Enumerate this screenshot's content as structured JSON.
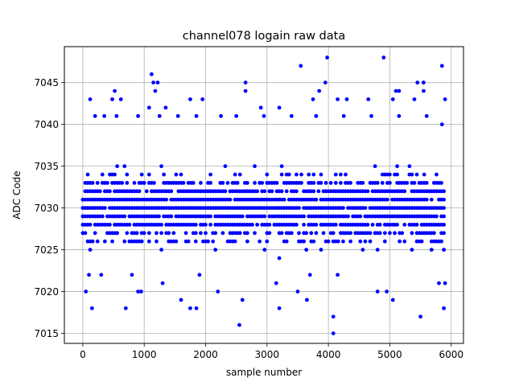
{
  "chart_data": {
    "type": "scatter",
    "title": "channel078 logain raw data",
    "xlabel": "sample number",
    "ylabel": "ADC Code",
    "xlim": [
      -300,
      6200
    ],
    "ylim": [
      7013.8,
      7049.3
    ],
    "xticks": [
      0,
      1000,
      2000,
      3000,
      4000,
      5000,
      6000
    ],
    "yticks": [
      7015,
      7020,
      7025,
      7030,
      7035,
      7040,
      7045
    ],
    "grid": true,
    "marker_color": "#0000ff",
    "series": [
      {
        "x_range": [
          0,
          5900
        ],
        "x_step": 40,
        "typical_range": [
          7022,
          7038
        ],
        "center": 7030,
        "points": [
          [
            2550,
            7016
          ],
          [
            4080,
            7015
          ],
          [
            4080,
            7017
          ],
          [
            5500,
            7017
          ],
          [
            150,
            7018
          ],
          [
            700,
            7018
          ],
          [
            1750,
            7018
          ],
          [
            1850,
            7018
          ],
          [
            3200,
            7018
          ],
          [
            5880,
            7018
          ],
          [
            2600,
            7019
          ],
          [
            3650,
            7019
          ],
          [
            5050,
            7019
          ],
          [
            1600,
            7019
          ],
          [
            50,
            7020
          ],
          [
            900,
            7020
          ],
          [
            950,
            7020
          ],
          [
            2200,
            7020
          ],
          [
            3500,
            7020
          ],
          [
            4800,
            7020
          ],
          [
            4950,
            7020
          ],
          [
            100,
            7022
          ],
          [
            300,
            7022
          ],
          [
            800,
            7022
          ],
          [
            1300,
            7021
          ],
          [
            1900,
            7022
          ],
          [
            3150,
            7021
          ],
          [
            3700,
            7022
          ],
          [
            4150,
            7022
          ],
          [
            5800,
            7021
          ],
          [
            5900,
            7021
          ],
          [
            200,
            7041
          ],
          [
            350,
            7041
          ],
          [
            550,
            7041
          ],
          [
            900,
            7041
          ],
          [
            1250,
            7041
          ],
          [
            1550,
            7041
          ],
          [
            1850,
            7041
          ],
          [
            2250,
            7041
          ],
          [
            2500,
            7041
          ],
          [
            2950,
            7041
          ],
          [
            3400,
            7041
          ],
          [
            3800,
            7041
          ],
          [
            4250,
            7041
          ],
          [
            4700,
            7041
          ],
          [
            5150,
            7041
          ],
          [
            5600,
            7041
          ],
          [
            5850,
            7040
          ],
          [
            120,
            7043
          ],
          [
            480,
            7043
          ],
          [
            620,
            7043
          ],
          [
            1080,
            7042
          ],
          [
            1180,
            7044
          ],
          [
            1350,
            7042
          ],
          [
            1750,
            7043
          ],
          [
            1950,
            7043
          ],
          [
            2650,
            7044
          ],
          [
            2900,
            7042
          ],
          [
            3200,
            7042
          ],
          [
            3750,
            7043
          ],
          [
            4150,
            7043
          ],
          [
            4300,
            7043
          ],
          [
            4650,
            7043
          ],
          [
            5050,
            7043
          ],
          [
            5100,
            7044
          ],
          [
            5400,
            7043
          ],
          [
            5550,
            7044
          ],
          [
            5900,
            7043
          ],
          [
            520,
            7044
          ],
          [
            1120,
            7046
          ],
          [
            1150,
            7045
          ],
          [
            1220,
            7045
          ],
          [
            2650,
            7045
          ],
          [
            3850,
            7044
          ],
          [
            3950,
            7045
          ],
          [
            5150,
            7044
          ],
          [
            5450,
            7045
          ],
          [
            5550,
            7045
          ],
          [
            3550,
            7047
          ],
          [
            3980,
            7048
          ],
          [
            4900,
            7048
          ],
          [
            5850,
            7047
          ]
        ]
      }
    ]
  }
}
